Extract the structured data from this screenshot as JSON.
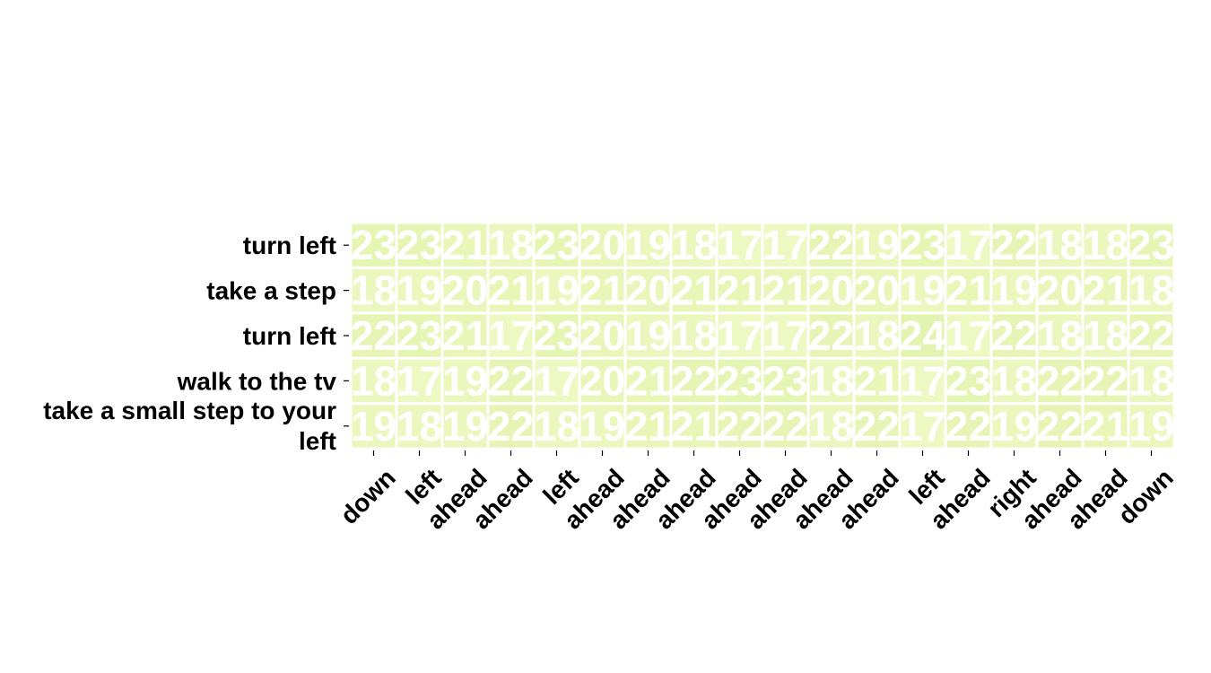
{
  "chart_data": {
    "type": "heatmap",
    "rows": [
      "turn left",
      "take a step",
      "turn left",
      "walk to the tv",
      "take a small step to your left"
    ],
    "columns": [
      "down",
      "left",
      "ahead",
      "ahead",
      "left",
      "ahead",
      "ahead",
      "ahead",
      "ahead",
      "ahead",
      "ahead",
      "ahead",
      "left",
      "ahead",
      "right",
      "ahead",
      "ahead",
      "down"
    ],
    "values": [
      [
        23,
        23,
        21,
        18,
        23,
        20,
        19,
        18,
        17,
        17,
        22,
        19,
        23,
        17,
        22,
        18,
        18,
        23
      ],
      [
        18,
        19,
        20,
        21,
        19,
        21,
        20,
        21,
        21,
        21,
        20,
        20,
        19,
        21,
        19,
        20,
        21,
        18
      ],
      [
        22,
        23,
        21,
        17,
        23,
        20,
        19,
        18,
        17,
        17,
        22,
        18,
        24,
        17,
        22,
        18,
        18,
        22
      ],
      [
        18,
        17,
        19,
        22,
        17,
        20,
        21,
        22,
        23,
        23,
        18,
        21,
        17,
        23,
        18,
        22,
        22,
        18
      ],
      [
        19,
        18,
        19,
        22,
        18,
        19,
        21,
        21,
        22,
        22,
        18,
        22,
        17,
        22,
        19,
        22,
        21,
        19
      ]
    ],
    "colormap": {
      "low": "#e3f4b0",
      "high": "#eef8c2"
    },
    "cell_text_color": "#ffffff",
    "grid_line_color": "#ffffff"
  }
}
